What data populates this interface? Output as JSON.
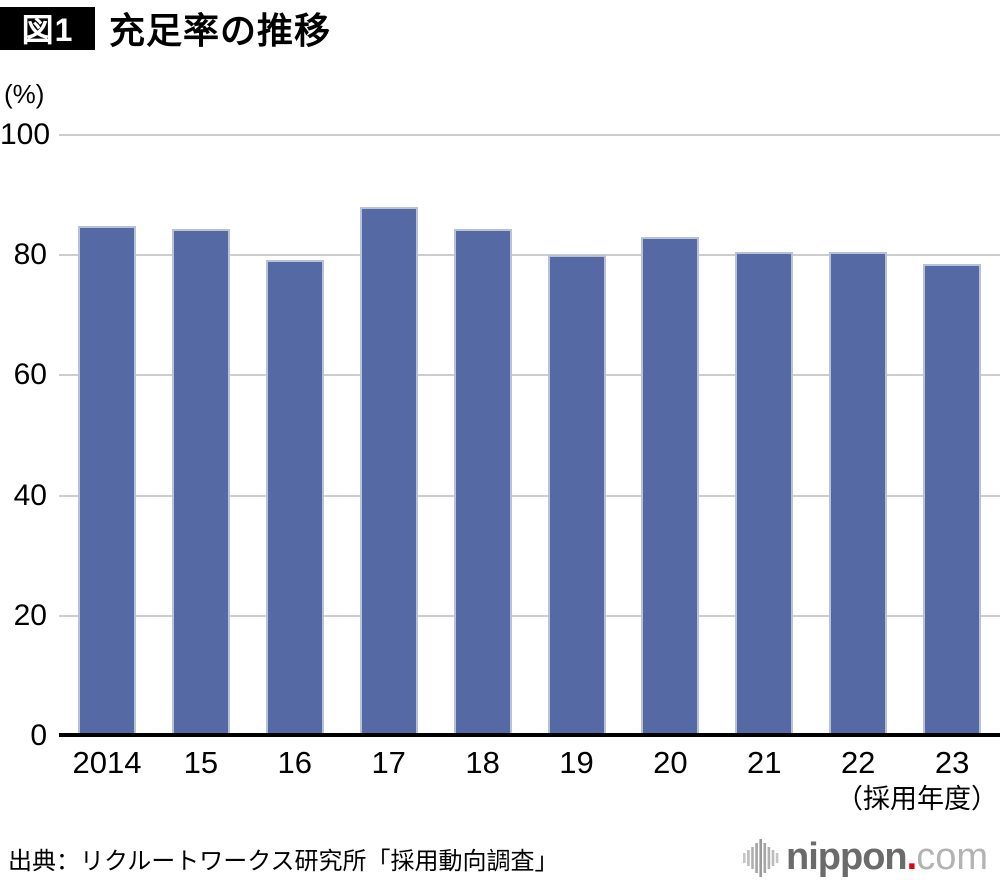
{
  "figure": {
    "badge": "図1",
    "title": "充足率の推移",
    "unit": "(%)",
    "x_axis_unit": "（採用年度）",
    "source": "出典：リクルートワークス研究所「採用動向調査」"
  },
  "chart_data": {
    "type": "bar",
    "title": "充足率の推移",
    "categories": [
      "2014",
      "15",
      "16",
      "17",
      "18",
      "19",
      "20",
      "21",
      "22",
      "23"
    ],
    "values": [
      84.9,
      84.3,
      79.2,
      88.1,
      84.4,
      80.0,
      83.1,
      80.5,
      80.5,
      78.5
    ],
    "xlabel": "（採用年度）",
    "ylabel": "(%)",
    "ylim": [
      0,
      100
    ],
    "yticks": [
      0,
      20,
      40,
      60,
      80,
      100
    ],
    "grid": true,
    "legend": false,
    "bar_color": "#5569a5",
    "bar_border_color": "#b9c1d8",
    "gridline_color": "#cdcdcd",
    "axis_color": "#000000"
  },
  "logo": {
    "name": "nippon",
    "dot": ".",
    "tld": "com"
  }
}
